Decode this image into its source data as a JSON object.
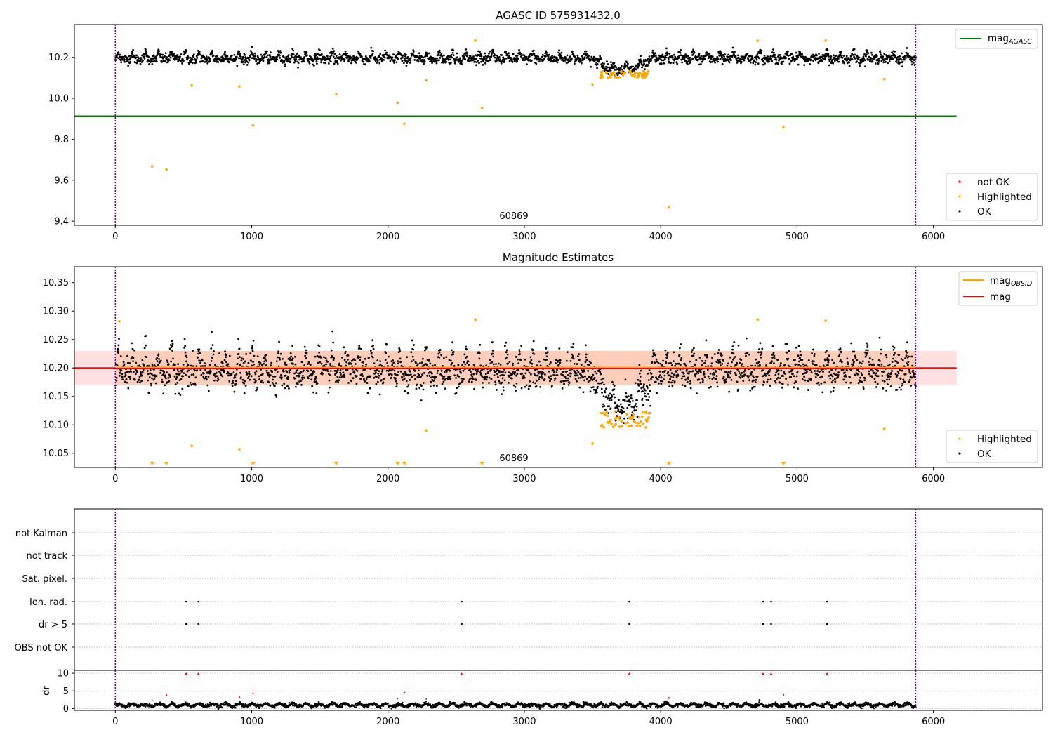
{
  "figure": {
    "obsid_label": "60869"
  },
  "colors": {
    "ok": "#000000",
    "highlighted": "#ffa500",
    "not_ok": "#ff0000",
    "agasc_line": "#008000",
    "mag_line": "#ff0000",
    "obsid_line": "#ffa500",
    "vline": "#800080",
    "band_red": "#ff0000",
    "band_orange": "#ff7f0e"
  },
  "chart_data": [
    {
      "id": "panel1",
      "type": "scatter",
      "title": "AGASC ID 575931432.0",
      "xlim": [
        -300,
        6800
      ],
      "ylim": [
        9.38,
        10.36
      ],
      "xticks": [
        0,
        1000,
        2000,
        3000,
        4000,
        5000,
        6000
      ],
      "yticks": [
        9.4,
        9.6,
        9.8,
        10.0,
        10.2
      ],
      "ytick_labels": [
        "9.4",
        "9.6",
        "9.8",
        "10.0",
        "10.2"
      ],
      "vlines": [
        0,
        5870
      ],
      "hline": {
        "y": 9.913,
        "x": [
          -300,
          6170
        ],
        "name": "mag",
        "sub": "AGASC"
      },
      "ok_points": {
        "x_range": [
          0,
          5870
        ],
        "baseline": 10.2,
        "amplitude": 0.03,
        "period": 98,
        "noise": 0.012,
        "dip": {
          "start": 3480,
          "end": 3960,
          "depth": 0.055
        }
      },
      "highlighted_points": [
        [
          270,
          9.668
        ],
        [
          375,
          9.652
        ],
        [
          560,
          10.063
        ],
        [
          910,
          10.058
        ],
        [
          1010,
          9.868
        ],
        [
          1620,
          10.02
        ],
        [
          2070,
          9.978
        ],
        [
          2120,
          9.876
        ],
        [
          2280,
          10.088
        ],
        [
          2640,
          10.282
        ],
        [
          2690,
          9.952
        ],
        [
          3500,
          10.068
        ],
        [
          4060,
          9.468
        ],
        [
          4710,
          10.281
        ],
        [
          4900,
          9.858
        ],
        [
          5210,
          10.282
        ],
        [
          5640,
          10.094
        ]
      ],
      "highlighted_cluster": {
        "x_range": [
          3550,
          3920
        ],
        "y_range": [
          10.1,
          10.135
        ]
      },
      "legend": [
        "not OK",
        "Highlighted",
        "OK"
      ]
    },
    {
      "id": "panel2",
      "type": "scatter",
      "title": "Magnitude Estimates",
      "xlim": [
        -300,
        6800
      ],
      "ylim": [
        10.025,
        10.378
      ],
      "xticks": [
        0,
        1000,
        2000,
        3000,
        4000,
        5000,
        6000
      ],
      "yticks": [
        10.05,
        10.1,
        10.15,
        10.2,
        10.25,
        10.3,
        10.35
      ],
      "ytick_labels": [
        "10.05",
        "10.10",
        "10.15",
        "10.20",
        "10.25",
        "10.30",
        "10.35"
      ],
      "vlines": [
        0,
        5870
      ],
      "mag_line": {
        "y": 10.2,
        "x": [
          -300,
          6170
        ]
      },
      "band": {
        "y": [
          10.17,
          10.23
        ],
        "x": [
          -300,
          6170
        ]
      },
      "obsid_band": {
        "y": [
          10.17,
          10.23
        ],
        "x": [
          0,
          5870
        ]
      },
      "ok_points": {
        "x_range": [
          0,
          5870
        ],
        "baseline": 10.2,
        "amplitude": 0.035,
        "period": 98,
        "noise": 0.014,
        "dip": {
          "start": 3480,
          "end": 3960,
          "depth": 0.065
        }
      },
      "highlighted_points": [
        [
          30,
          10.282
        ],
        [
          560,
          10.063
        ],
        [
          910,
          10.057
        ],
        [
          2280,
          10.09
        ],
        [
          2640,
          10.285
        ],
        [
          3500,
          10.067
        ],
        [
          4710,
          10.285
        ],
        [
          5210,
          10.283
        ],
        [
          5640,
          10.093
        ]
      ],
      "highlighted_cluster": {
        "x_range": [
          3550,
          3920
        ],
        "y_range": [
          10.095,
          10.125
        ]
      },
      "offscale_markers": [
        270,
        375,
        1010,
        1620,
        2070,
        2120,
        2690,
        4060,
        4900
      ],
      "legend_lines": [
        {
          "name": "mag",
          "sub": "OBSID"
        },
        {
          "name": "mag",
          "sub": ""
        }
      ],
      "legend_points": [
        "Highlighted",
        "OK"
      ]
    },
    {
      "id": "panel3",
      "type": "scatter",
      "xlim": [
        -300,
        6800
      ],
      "xticks": [
        0,
        1000,
        2000,
        3000,
        4000,
        5000,
        6000
      ],
      "vlines": [
        0,
        5870
      ],
      "flag_rows": [
        "not Kalman",
        "not track",
        "Sat. pixel.",
        "Ion. rad.",
        "dr > 5",
        "OBS not OK"
      ],
      "flag_points": {
        "Ion. rad.": [
          520,
          610,
          2540,
          3770,
          4750,
          4810,
          5220
        ],
        "dr > 5": [
          520,
          610,
          2540,
          3770,
          4750,
          4810,
          5220
        ]
      }
    },
    {
      "id": "panel4",
      "type": "scatter",
      "ylabel": "dr",
      "xlim": [
        -300,
        6800
      ],
      "ylim": [
        -0.5,
        10.8
      ],
      "xticks": [
        0,
        1000,
        2000,
        3000,
        4000,
        5000,
        6000
      ],
      "yticks": [
        0,
        5,
        10
      ],
      "ytick_labels": [
        "0",
        "5",
        "10"
      ],
      "vlines": [
        0,
        5870
      ],
      "ok_points": {
        "x_range": [
          0,
          5870
        ],
        "baseline": 1.0,
        "amplitude": 0.35,
        "period": 98,
        "noise": 0.25
      },
      "not_ok_points": [
        [
          520,
          9.8
        ],
        [
          610,
          9.8
        ],
        [
          2540,
          9.8
        ],
        [
          3770,
          9.8
        ],
        [
          4750,
          9.8
        ],
        [
          4810,
          9.8
        ],
        [
          5220,
          9.8
        ],
        [
          375,
          3.8
        ],
        [
          910,
          3.2
        ],
        [
          1010,
          4.3
        ],
        [
          2120,
          4.5
        ],
        [
          4060,
          3.0
        ],
        [
          4900,
          3.9
        ]
      ],
      "gray_points": [
        [
          270,
          2.4
        ],
        [
          2070,
          2.8
        ],
        [
          2280,
          2.7
        ]
      ]
    }
  ]
}
